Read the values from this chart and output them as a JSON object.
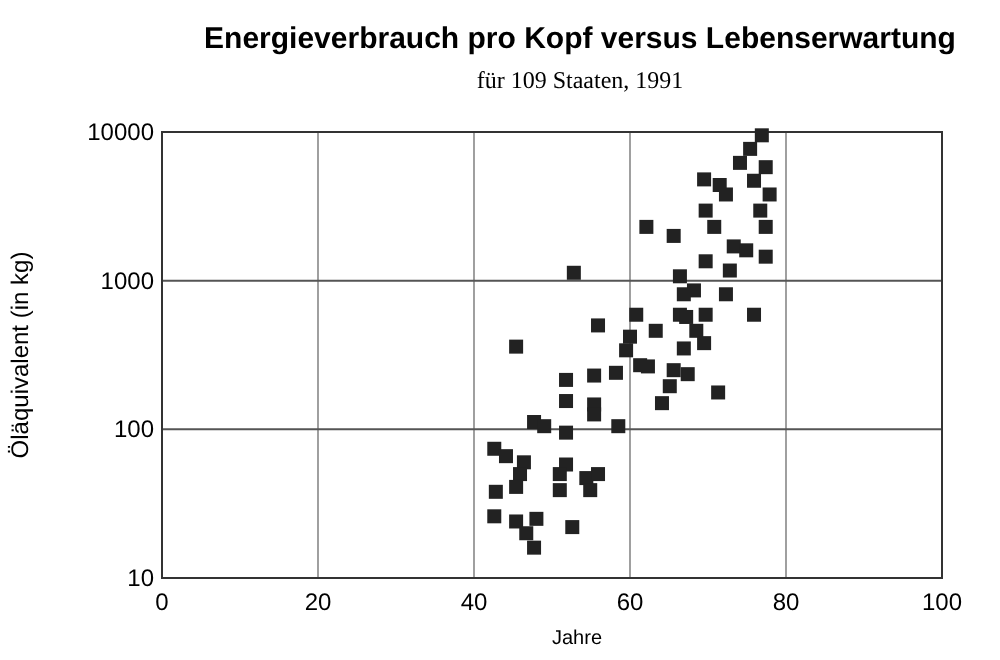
{
  "chart_data": {
    "type": "scatter",
    "title": "Energieverbrauch pro Kopf versus Lebenserwartung",
    "subtitle": "für 109 Staaten, 1991",
    "xlabel": "Jahre",
    "ylabel": "Öläquivalent (in kg)",
    "log": "y",
    "grid": true,
    "marker": "square",
    "xlim": [
      0,
      100
    ],
    "xticks": [
      0,
      20,
      40,
      60,
      80,
      100
    ],
    "ylim": [
      10,
      10000
    ],
    "yticks": [
      10,
      100,
      1000,
      10000
    ],
    "series": [
      {
        "color": "#222222",
        "x": [
          76.9,
          75.4,
          74.1,
          77.4,
          69.5,
          71.5,
          75.9,
          77.9,
          72.3,
          69.7,
          76.7,
          70.8,
          77.4,
          73.3,
          74.9,
          77.4,
          62.1,
          65.6,
          52.8,
          69.7,
          72.8,
          66.4,
          68.2,
          72.3,
          66.9,
          69.7,
          75.9,
          66.4,
          60.8,
          55.9,
          63.3,
          68.5,
          60,
          45.4,
          66.9,
          67.2,
          69.5,
          59.5,
          61.3,
          58.2,
          62.3,
          65.6,
          55.4,
          67.4,
          51.8,
          65.1,
          71.3,
          51.8,
          55.4,
          64.1,
          55.4,
          47.7,
          49,
          51.8,
          58.5,
          42.6,
          44.1,
          46.4,
          51.8,
          45.9,
          51,
          54.4,
          55.9,
          42.8,
          45.4,
          51,
          54.9,
          42.6,
          45.4,
          48,
          52.6,
          46.7,
          47.7
        ],
        "values": [
          9500,
          7700,
          6200,
          5800,
          4800,
          4400,
          4700,
          3800,
          3800,
          2960,
          2960,
          2300,
          2300,
          1700,
          1600,
          1450,
          2300,
          2000,
          1130,
          1350,
          1170,
          1070,
          860,
          810,
          810,
          590,
          590,
          590,
          590,
          500,
          460,
          460,
          420,
          360,
          350,
          570,
          380,
          340,
          270,
          240,
          265,
          250,
          230,
          235,
          215,
          195,
          177,
          155,
          147,
          150,
          126,
          112,
          105,
          95,
          105,
          74,
          66,
          60,
          58,
          50,
          50,
          47,
          50,
          38,
          41,
          39,
          39,
          26,
          24,
          25,
          22,
          20,
          16
        ]
      }
    ]
  }
}
